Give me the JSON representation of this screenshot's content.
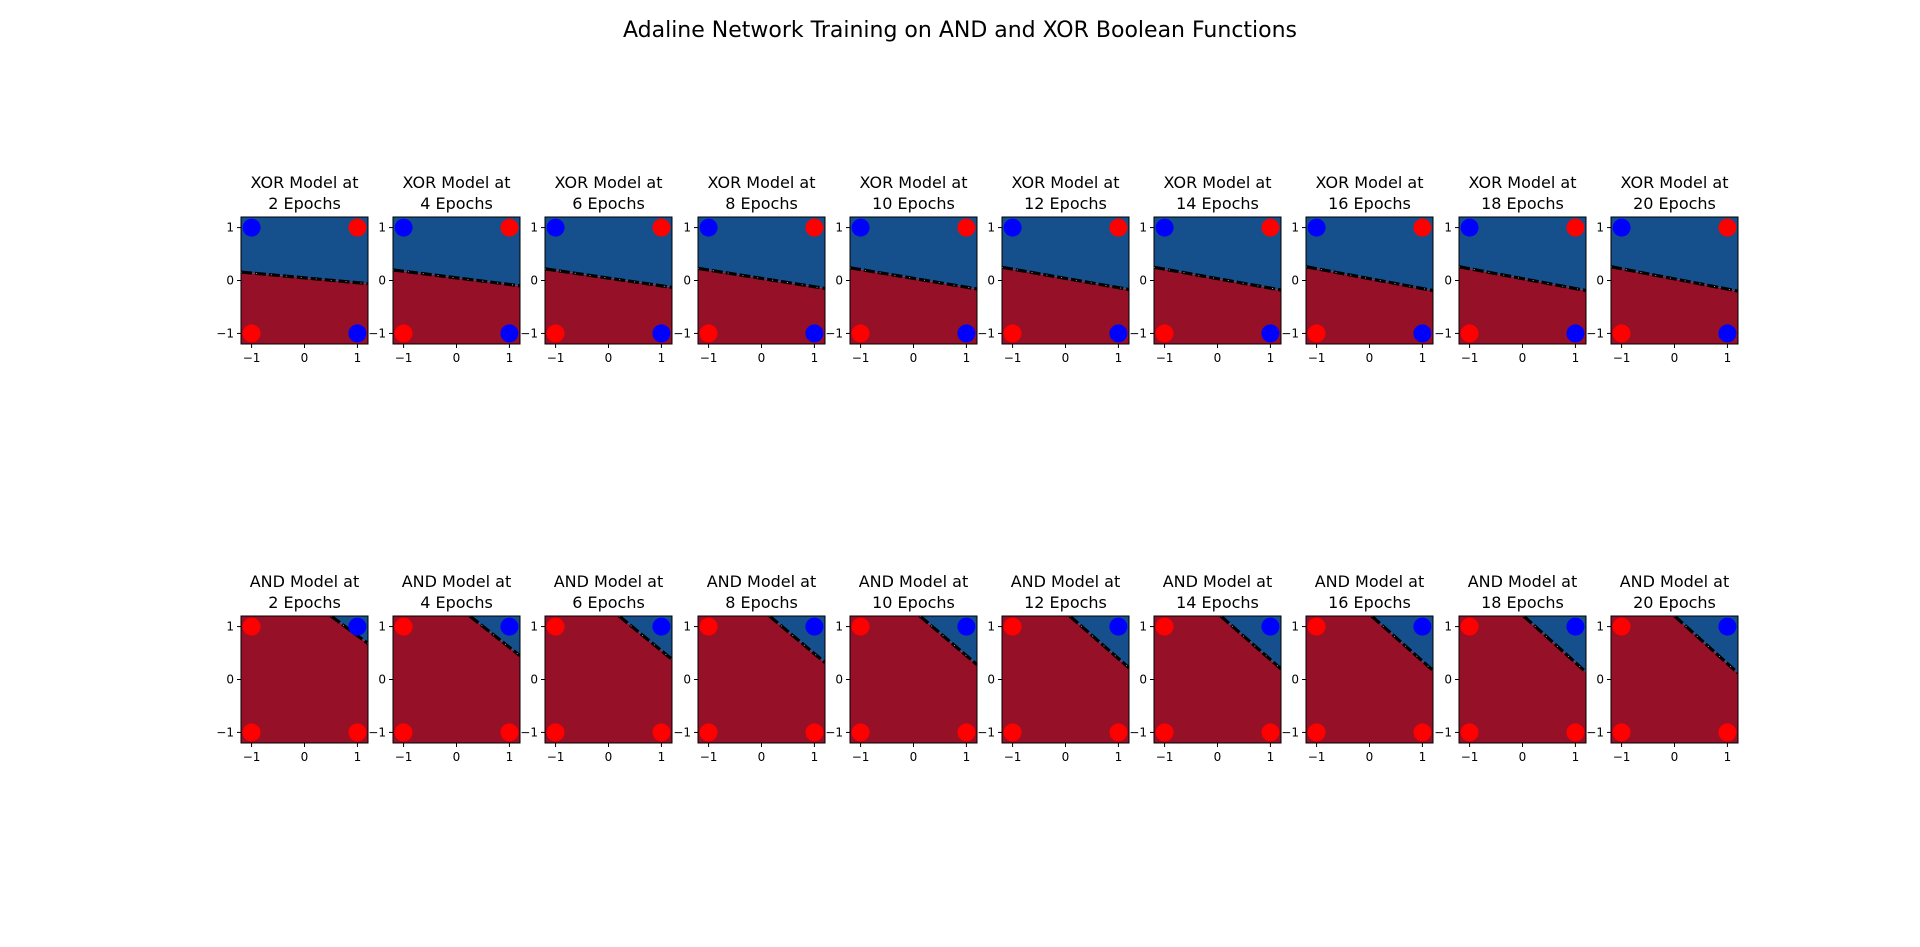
{
  "figure": {
    "title": "Adaline Network Training on AND and XOR Boolean Functions"
  },
  "colors": {
    "class_pos_region": "#15508d",
    "class_neg_region": "#961027",
    "point_pos": "#0000ff",
    "point_neg": "#ff0000",
    "boundary": "#000000"
  },
  "chart_data": [
    {
      "type": "scatter",
      "title": "XOR Model at\n2 Epochs",
      "boundary": [
        [
          -1.2,
          0.16
        ],
        [
          1.2,
          -0.06
        ]
      ]
    },
    {
      "type": "scatter",
      "title": "XOR Model at\n4 Epochs",
      "boundary": [
        [
          -1.2,
          0.2
        ],
        [
          1.2,
          -0.1
        ]
      ]
    },
    {
      "type": "scatter",
      "title": "XOR Model at\n6 Epochs",
      "boundary": [
        [
          -1.2,
          0.22
        ],
        [
          1.2,
          -0.13
        ]
      ]
    },
    {
      "type": "scatter",
      "title": "XOR Model at\n8 Epochs",
      "boundary": [
        [
          -1.2,
          0.23
        ],
        [
          1.2,
          -0.15
        ]
      ]
    },
    {
      "type": "scatter",
      "title": "XOR Model at\n10 Epochs",
      "boundary": [
        [
          -1.2,
          0.24
        ],
        [
          1.2,
          -0.16
        ]
      ]
    },
    {
      "type": "scatter",
      "title": "XOR Model at\n12 Epochs",
      "boundary": [
        [
          -1.2,
          0.25
        ],
        [
          1.2,
          -0.17
        ]
      ]
    },
    {
      "type": "scatter",
      "title": "XOR Model at\n14 Epochs",
      "boundary": [
        [
          -1.2,
          0.25
        ],
        [
          1.2,
          -0.18
        ]
      ]
    },
    {
      "type": "scatter",
      "title": "XOR Model at\n16 Epochs",
      "boundary": [
        [
          -1.2,
          0.26
        ],
        [
          1.2,
          -0.19
        ]
      ]
    },
    {
      "type": "scatter",
      "title": "XOR Model at\n18 Epochs",
      "boundary": [
        [
          -1.2,
          0.26
        ],
        [
          1.2,
          -0.19
        ]
      ]
    },
    {
      "type": "scatter",
      "title": "XOR Model at\n20 Epochs",
      "boundary": [
        [
          -1.2,
          0.26
        ],
        [
          1.2,
          -0.2
        ]
      ]
    },
    {
      "type": "scatter",
      "title": "AND Model at\n2 Epochs",
      "boundary": [
        [
          0.5,
          1.2
        ],
        [
          1.2,
          0.68
        ]
      ]
    },
    {
      "type": "scatter",
      "title": "AND Model at\n4 Epochs",
      "boundary": [
        [
          0.25,
          1.2
        ],
        [
          1.2,
          0.45
        ]
      ]
    },
    {
      "type": "scatter",
      "title": "AND Model at\n6 Epochs",
      "boundary": [
        [
          0.2,
          1.2
        ],
        [
          1.2,
          0.38
        ]
      ]
    },
    {
      "type": "scatter",
      "title": "AND Model at\n8 Epochs",
      "boundary": [
        [
          0.15,
          1.2
        ],
        [
          1.2,
          0.32
        ]
      ]
    },
    {
      "type": "scatter",
      "title": "AND Model at\n10 Epochs",
      "boundary": [
        [
          0.12,
          1.2
        ],
        [
          1.2,
          0.28
        ]
      ]
    },
    {
      "type": "scatter",
      "title": "AND Model at\n12 Epochs",
      "boundary": [
        [
          0.08,
          1.2
        ],
        [
          1.2,
          0.22
        ]
      ]
    },
    {
      "type": "scatter",
      "title": "AND Model at\n14 Epochs",
      "boundary": [
        [
          0.06,
          1.2
        ],
        [
          1.2,
          0.2
        ]
      ]
    },
    {
      "type": "scatter",
      "title": "AND Model at\n16 Epochs",
      "boundary": [
        [
          0.04,
          1.2
        ],
        [
          1.2,
          0.17
        ]
      ]
    },
    {
      "type": "scatter",
      "title": "AND Model at\n18 Epochs",
      "boundary": [
        [
          0.02,
          1.2
        ],
        [
          1.2,
          0.14
        ]
      ]
    },
    {
      "type": "scatter",
      "title": "AND Model at\n20 Epochs",
      "boundary": [
        [
          0.0,
          1.2
        ],
        [
          1.2,
          0.12
        ]
      ]
    }
  ],
  "shared": {
    "xlim": [
      -1.2,
      1.2
    ],
    "ylim": [
      -1.2,
      1.2
    ],
    "xticks": [
      -1,
      0,
      1
    ],
    "yticks": [
      -1,
      0,
      1
    ],
    "tick_labels": [
      "−1",
      "0",
      "1"
    ],
    "xor_points": [
      {
        "x": -1,
        "y": 1,
        "class": "pos"
      },
      {
        "x": 1,
        "y": 1,
        "class": "neg"
      },
      {
        "x": -1,
        "y": -1,
        "class": "neg"
      },
      {
        "x": 1,
        "y": -1,
        "class": "pos"
      }
    ],
    "and_points": [
      {
        "x": -1,
        "y": 1,
        "class": "neg"
      },
      {
        "x": 1,
        "y": 1,
        "class": "pos"
      },
      {
        "x": -1,
        "y": -1,
        "class": "neg"
      },
      {
        "x": 1,
        "y": -1,
        "class": "neg"
      }
    ],
    "legend": "none",
    "grid": false
  }
}
